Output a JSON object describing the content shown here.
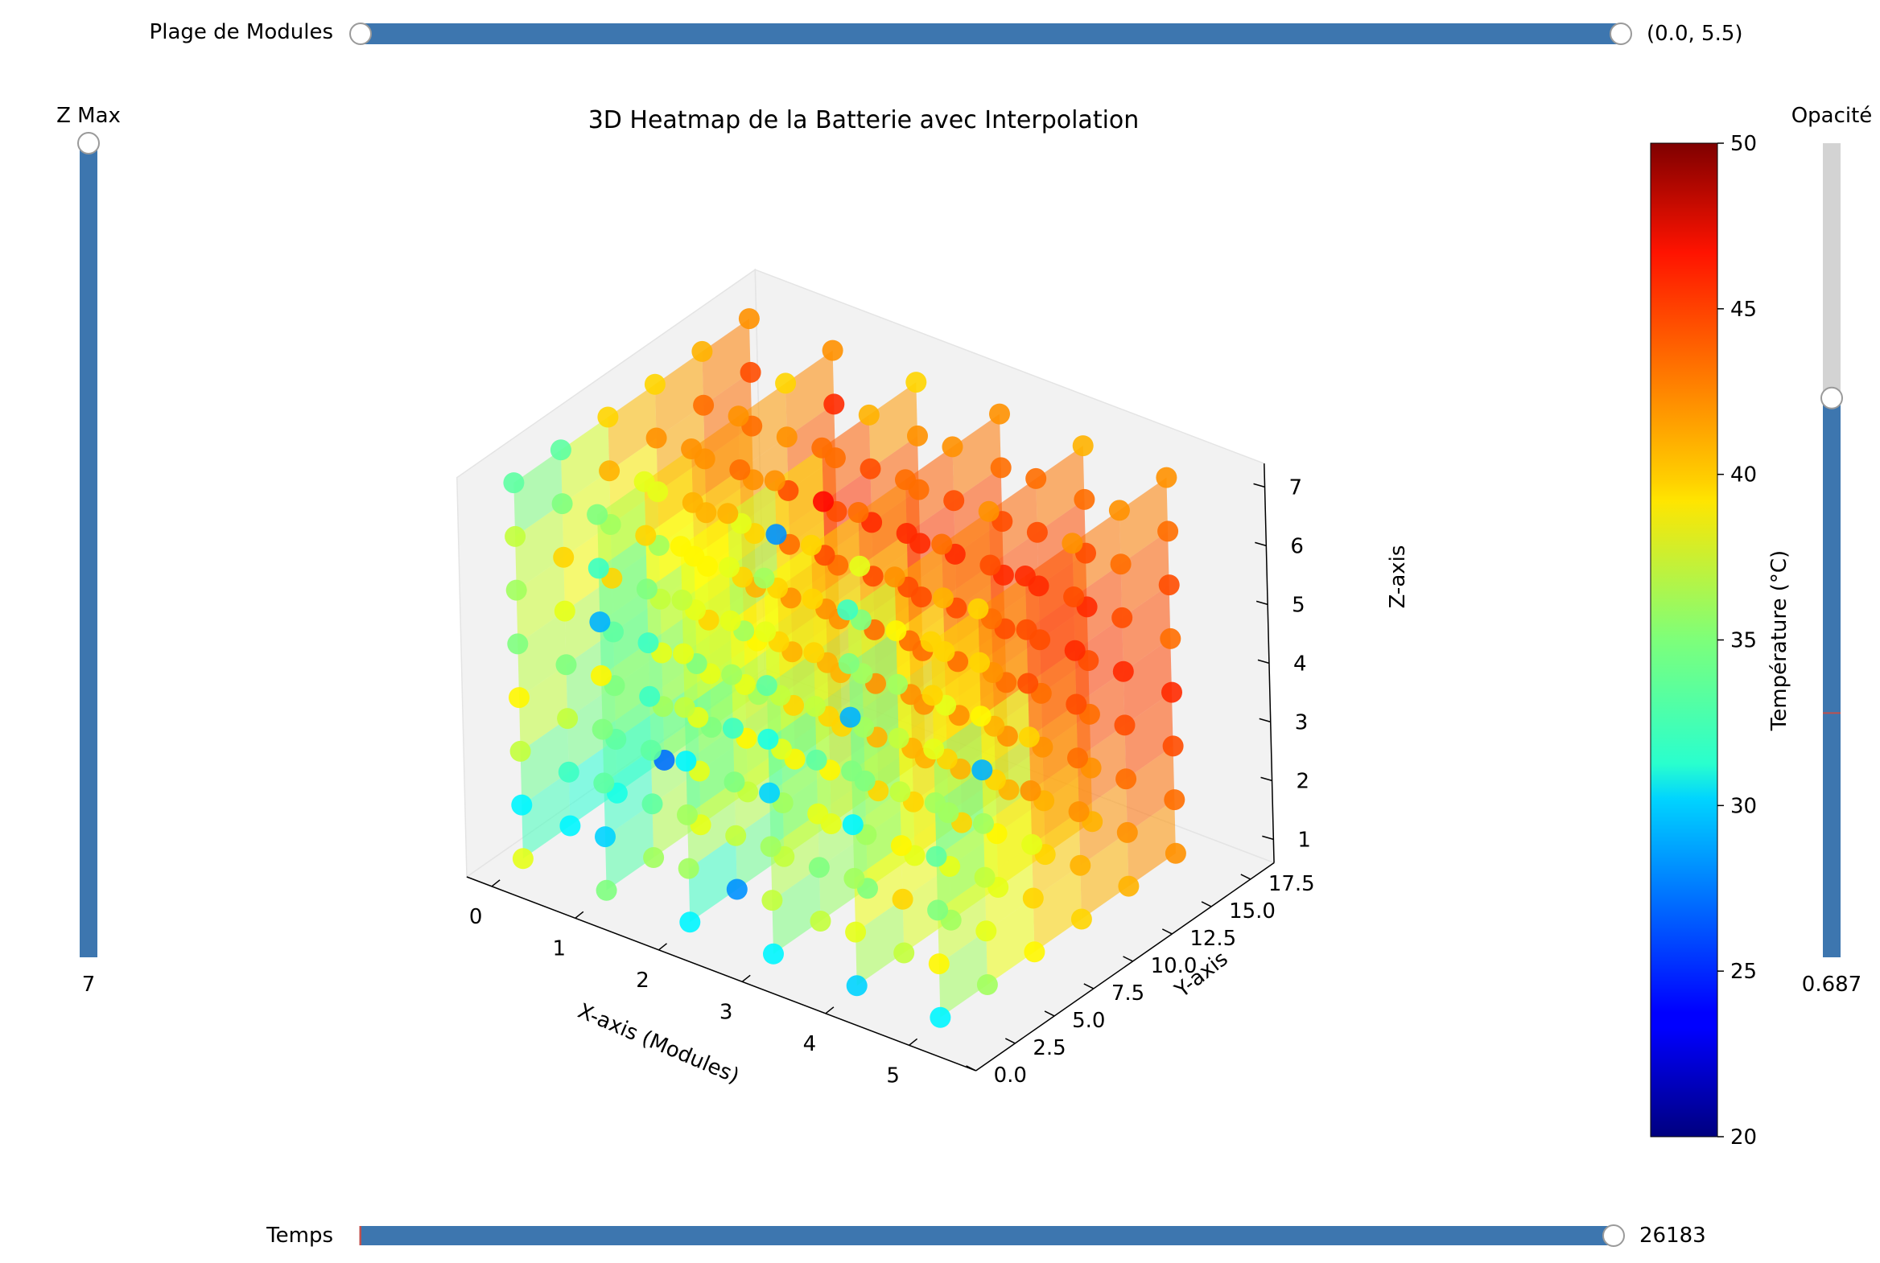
{
  "sliders": {
    "modules": {
      "label": "Plage de Modules",
      "value_text": "(0.0, 5.5)",
      "min": 0.0,
      "max": 5.5,
      "range_min": 0.0,
      "range_max": 5.5
    },
    "zmax": {
      "label": "Z Max",
      "value_text": "7",
      "value": 7,
      "max": 7
    },
    "opacity": {
      "label": "Opacité",
      "value_text": "0.687",
      "value": 0.687,
      "valinit": 0.3
    },
    "time": {
      "label": "Temps",
      "value_text": "26183",
      "value": 26183,
      "max": 26183
    }
  },
  "colors": {
    "slider_fill": "#3d76af",
    "slider_track": "#d3d3d3",
    "valinit_marker": "#c0504d",
    "pane": "#f2f2f2",
    "pane_edge": "#e4e4e4"
  },
  "chart_data": {
    "type": "scatter3d",
    "title": "3D Heatmap de la Batterie avec Interpolation",
    "xlabel": "X-axis (Modules)",
    "ylabel": "Y-axis",
    "zlabel": "Z-axis",
    "x_ticks": [
      "0",
      "1",
      "2",
      "3",
      "4",
      "5"
    ],
    "y_ticks": [
      "0.0",
      "2.5",
      "5.0",
      "7.5",
      "10.0",
      "12.5",
      "15.0",
      "17.5"
    ],
    "z_ticks": [
      "1",
      "2",
      "3",
      "4",
      "5",
      "6",
      "7"
    ],
    "xlim": [
      -0.3,
      5.8
    ],
    "ylim": [
      0,
      19
    ],
    "zlim": [
      0.6,
      7.4
    ],
    "colorbar": {
      "label": "Température (°C)",
      "min": 20,
      "max": 50,
      "ticks": [
        "20",
        "25",
        "30",
        "35",
        "40",
        "45",
        "50"
      ],
      "colormap": "jet"
    },
    "columns": [
      {
        "x": 0,
        "y": 2,
        "temps": [
          38,
          31,
          37,
          39,
          35,
          36,
          37,
          34
        ]
      },
      {
        "x": 0,
        "y": 5,
        "temps": [
          31,
          33,
          37,
          35,
          38,
          40,
          35,
          34
        ]
      },
      {
        "x": 0,
        "y": 8,
        "temps": [
          32,
          34,
          35,
          34,
          40,
          36,
          41,
          40
        ]
      },
      {
        "x": 0,
        "y": 11,
        "temps": [
          27,
          36,
          38,
          37,
          36,
          38,
          42,
          40
        ]
      },
      {
        "x": 0,
        "y": 14,
        "temps": [
          35,
          38,
          40,
          39,
          41,
          42,
          43,
          41
        ]
      },
      {
        "x": 0,
        "y": 17,
        "temps": [
          36,
          39,
          41,
          40,
          42,
          43,
          44,
          42
        ]
      },
      {
        "x": 1,
        "y": 2,
        "temps": [
          35,
          30,
          34,
          35,
          39,
          29,
          33,
          35
        ]
      },
      {
        "x": 1,
        "y": 5,
        "temps": [
          36,
          34,
          34,
          33,
          33,
          35,
          40,
          38
        ]
      },
      {
        "x": 1,
        "y": 8,
        "temps": [
          38,
          38,
          38,
          35,
          38,
          39,
          41,
          42
        ]
      },
      {
        "x": 1,
        "y": 11,
        "temps": [
          37,
          39,
          38,
          36,
          40,
          38,
          43,
          42
        ]
      },
      {
        "x": 1,
        "y": 14,
        "temps": [
          39,
          40,
          41,
          42,
          43,
          44,
          42,
          40
        ]
      },
      {
        "x": 1,
        "y": 17,
        "temps": [
          40,
          41,
          42,
          43,
          44,
          43,
          45,
          42
        ]
      },
      {
        "x": 2,
        "y": 2,
        "temps": [
          31,
          36,
          36,
          31,
          37,
          38,
          37,
          39
        ]
      },
      {
        "x": 2,
        "y": 5,
        "temps": [
          28,
          37,
          35,
          33,
          36,
          38,
          38,
          41
        ]
      },
      {
        "x": 2,
        "y": 8,
        "temps": [
          37,
          36,
          38,
          37,
          40,
          40,
          28,
          42
        ]
      },
      {
        "x": 2,
        "y": 11,
        "temps": [
          38,
          39,
          40,
          41,
          42,
          44,
          46,
          43
        ]
      },
      {
        "x": 2,
        "y": 14,
        "temps": [
          40,
          41,
          42,
          43,
          44,
          45,
          44,
          41
        ]
      },
      {
        "x": 2,
        "y": 17,
        "temps": [
          41,
          42,
          43,
          44,
          45,
          43,
          42,
          40
        ]
      },
      {
        "x": 3,
        "y": 2,
        "temps": [
          31,
          37,
          36,
          30,
          32,
          34,
          38,
          36
        ]
      },
      {
        "x": 3,
        "y": 5,
        "temps": [
          37,
          35,
          38,
          34,
          37,
          40,
          40,
          40
        ]
      },
      {
        "x": 3,
        "y": 8,
        "temps": [
          35,
          36,
          35,
          36,
          36,
          35,
          38,
          43
        ]
      },
      {
        "x": 3,
        "y": 11,
        "temps": [
          38,
          40,
          41,
          42,
          43,
          44,
          45,
          43
        ]
      },
      {
        "x": 3,
        "y": 14,
        "temps": [
          40,
          41,
          42,
          43,
          44,
          45,
          44,
          42
        ]
      },
      {
        "x": 3,
        "y": 17,
        "temps": [
          41,
          42,
          43,
          44,
          45,
          44,
          43,
          42
        ]
      },
      {
        "x": 4,
        "y": 2,
        "temps": [
          30,
          38,
          36,
          31,
          35,
          29,
          35,
          33
        ]
      },
      {
        "x": 4,
        "y": 5,
        "temps": [
          37,
          40,
          39,
          37,
          37,
          36,
          39,
          42
        ]
      },
      {
        "x": 4,
        "y": 8,
        "temps": [
          36,
          38,
          36,
          40,
          38,
          40,
          41,
          43
        ]
      },
      {
        "x": 4,
        "y": 11,
        "temps": [
          38,
          39,
          40,
          41,
          42,
          43,
          44,
          42
        ]
      },
      {
        "x": 4,
        "y": 14,
        "temps": [
          40,
          41,
          42,
          43,
          44,
          45,
          44,
          43
        ]
      },
      {
        "x": 4,
        "y": 17,
        "temps": [
          41,
          42,
          43,
          44,
          45,
          44,
          43,
          41
        ]
      },
      {
        "x": 5,
        "y": 2,
        "temps": [
          31,
          39,
          35,
          34,
          36,
          38,
          40,
          40
        ]
      },
      {
        "x": 5,
        "y": 5,
        "temps": [
          36,
          38,
          37,
          36,
          29,
          39,
          40,
          40
        ]
      },
      {
        "x": 5,
        "y": 8,
        "temps": [
          39,
          40,
          38,
          42,
          40,
          44,
          44,
          45
        ]
      },
      {
        "x": 5,
        "y": 11,
        "temps": [
          40,
          41,
          42,
          43,
          44,
          45,
          44,
          42
        ]
      },
      {
        "x": 5,
        "y": 14,
        "temps": [
          41,
          42,
          43,
          44,
          45,
          44,
          43,
          42
        ]
      },
      {
        "x": 5,
        "y": 17,
        "temps": [
          42,
          43,
          44,
          45,
          43,
          44,
          43,
          42
        ]
      }
    ]
  }
}
